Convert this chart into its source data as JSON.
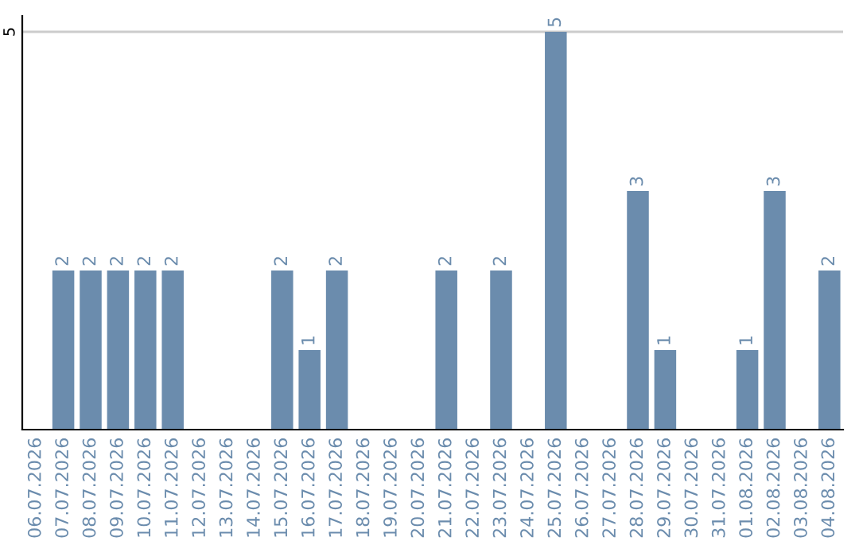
{
  "chart_data": {
    "type": "bar",
    "categories": [
      "06.07.2026",
      "07.07.2026",
      "08.07.2026",
      "09.07.2026",
      "10.07.2026",
      "11.07.2026",
      "12.07.2026",
      "13.07.2026",
      "14.07.2026",
      "15.07.2026",
      "16.07.2026",
      "17.07.2026",
      "18.07.2026",
      "19.07.2026",
      "20.07.2026",
      "21.07.2026",
      "22.07.2026",
      "23.07.2026",
      "24.07.2026",
      "25.07.2026",
      "26.07.2026",
      "27.07.2026",
      "28.07.2026",
      "29.07.2026",
      "30.07.2026",
      "31.07.2026",
      "01.08.2026",
      "02.08.2026",
      "03.08.2026",
      "04.08.2026"
    ],
    "values": [
      0,
      2,
      2,
      2,
      2,
      2,
      0,
      0,
      0,
      2,
      1,
      2,
      0,
      0,
      0,
      2,
      0,
      2,
      0,
      5,
      0,
      0,
      3,
      1,
      0,
      0,
      1,
      3,
      0,
      2
    ],
    "value_labels": [
      null,
      "2",
      "2",
      "2",
      "2",
      "2",
      null,
      null,
      null,
      "2",
      "1",
      "2",
      null,
      null,
      null,
      "2",
      null,
      "2",
      null,
      "5",
      null,
      null,
      "3",
      "1",
      null,
      null,
      "1",
      "3",
      null,
      "2"
    ],
    "color": "#6b8cad",
    "ylim": [
      0,
      5.2
    ],
    "yticks": [
      5
    ],
    "grid": "y"
  }
}
